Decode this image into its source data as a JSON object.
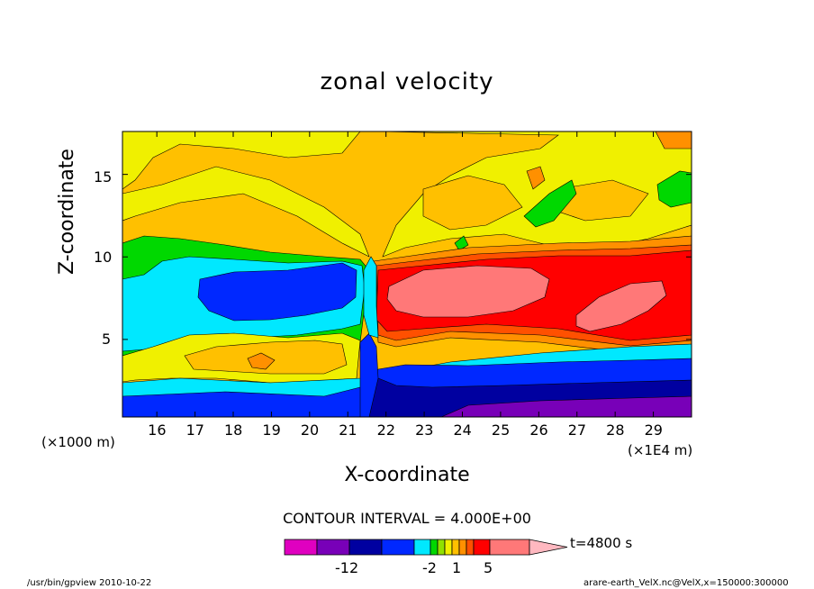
{
  "chart_data": {
    "type": "heatmap",
    "title": "zonal velocity",
    "xlabel": "X-coordinate",
    "ylabel": "Z-coordinate",
    "x_unit_left": "(×1000 m)",
    "x_unit_right": "(×1E4 m)",
    "x_ticks": [
      "16",
      "17",
      "18",
      "19",
      "20",
      "21",
      "22",
      "23",
      "24",
      "25",
      "26",
      "27",
      "28",
      "29"
    ],
    "y_ticks": [
      "5",
      "10",
      "15"
    ],
    "xlim": [
      15.1,
      30.0
    ],
    "ylim": [
      0.3,
      17.6
    ],
    "contour_interval": "CONTOUR INTERVAL = 4.000E+00",
    "colorbar": {
      "labels": [
        "-12",
        "-2",
        "1",
        "5"
      ],
      "time_label": "t=4800 s",
      "colors": [
        "#e000c0",
        "#7800b8",
        "#0000a0",
        "#0028ff",
        "#00e8ff",
        "#00d800",
        "#90e000",
        "#f0f000",
        "#ffc000",
        "#ff9000",
        "#ff5000",
        "#ff0000",
        "#ff7878",
        "#ffb8c0"
      ]
    },
    "regions": [
      {
        "name": "upper-left-yellow",
        "level": "yellow"
      },
      {
        "name": "cyan-layer-left",
        "level": "cyan"
      },
      {
        "name": "blue-core-left",
        "level": "blue"
      },
      {
        "name": "red-core-right",
        "level": "red"
      },
      {
        "name": "pink-core-1",
        "level": "pink"
      },
      {
        "name": "pink-core-2",
        "level": "pink"
      },
      {
        "name": "navy-bottom",
        "level": "navy"
      },
      {
        "name": "purple-bottom",
        "level": "purple"
      }
    ]
  },
  "footer": {
    "left": "/usr/bin/gpview   2010-10-22",
    "right": "arare-earth_VelX.nc@VelX,x=150000:300000"
  }
}
